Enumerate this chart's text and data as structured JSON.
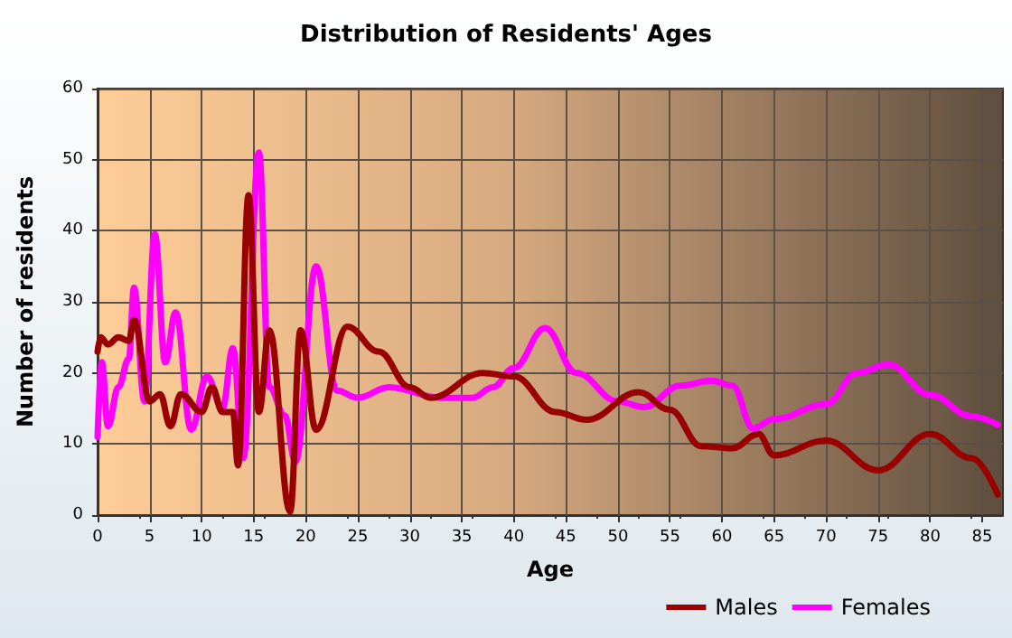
{
  "chart_data": {
    "type": "line",
    "title": "Distribution of Residents' Ages",
    "xlabel": "Age",
    "ylabel": "Number of residents",
    "xlim": [
      0,
      87
    ],
    "xticks": [
      0,
      5,
      10,
      15,
      20,
      25,
      30,
      35,
      40,
      45,
      50,
      55,
      60,
      65,
      70,
      75,
      80,
      85
    ],
    "ylim": [
      0,
      60
    ],
    "yticks": [
      0,
      10,
      20,
      30,
      40,
      50,
      60
    ],
    "grid": true,
    "legend": "bottom right",
    "marker": "none",
    "line_style": "solid",
    "series": [
      {
        "name": "Males",
        "color": "#990000",
        "x": [
          0,
          0.3,
          1,
          2,
          3,
          3.5,
          5,
          6,
          7,
          8,
          10,
          11,
          12,
          13,
          13.5,
          14.5,
          15.5,
          16.5,
          18.5,
          19.5,
          21,
          24,
          27,
          30,
          32,
          37,
          40,
          44,
          47,
          52,
          55,
          58,
          61,
          63.5,
          65,
          70,
          75,
          80,
          84,
          86.5
        ],
        "values": [
          23,
          25,
          24,
          25,
          24.5,
          27.5,
          16,
          17,
          12.5,
          17,
          14.5,
          18,
          14.5,
          14.5,
          7,
          45,
          14.5,
          26,
          0.5,
          26,
          12,
          26.5,
          23,
          18,
          16.5,
          20,
          19.5,
          14.5,
          13.4,
          17.3,
          14.8,
          9.7,
          9.4,
          11.4,
          8.4,
          10.5,
          6.3,
          11.4,
          8,
          2.9
        ]
      },
      {
        "name": "Females",
        "color": "#ff00ff",
        "x": [
          0,
          0.4,
          1,
          2,
          3,
          3.5,
          4.5,
          5.5,
          6.5,
          7.5,
          9,
          10.5,
          12,
          13,
          14,
          15.5,
          16.5,
          18,
          19,
          21,
          23,
          25,
          28,
          33,
          36,
          38,
          40,
          43,
          46,
          50,
          52.5,
          56,
          59,
          61,
          63,
          65,
          70,
          73,
          76,
          80,
          84,
          86.5
        ],
        "values": [
          11,
          21.5,
          12.5,
          18,
          22,
          32,
          16,
          39.5,
          21.5,
          28.5,
          12,
          19.5,
          15,
          23.5,
          8,
          51,
          18,
          14,
          7.5,
          35,
          17.5,
          16.5,
          18,
          16.5,
          16.5,
          18,
          20.7,
          26.3,
          20,
          16,
          15.2,
          18.2,
          18.9,
          18.2,
          12.2,
          13.5,
          15.6,
          20,
          21.2,
          16.9,
          13.9,
          12.7
        ]
      }
    ]
  }
}
